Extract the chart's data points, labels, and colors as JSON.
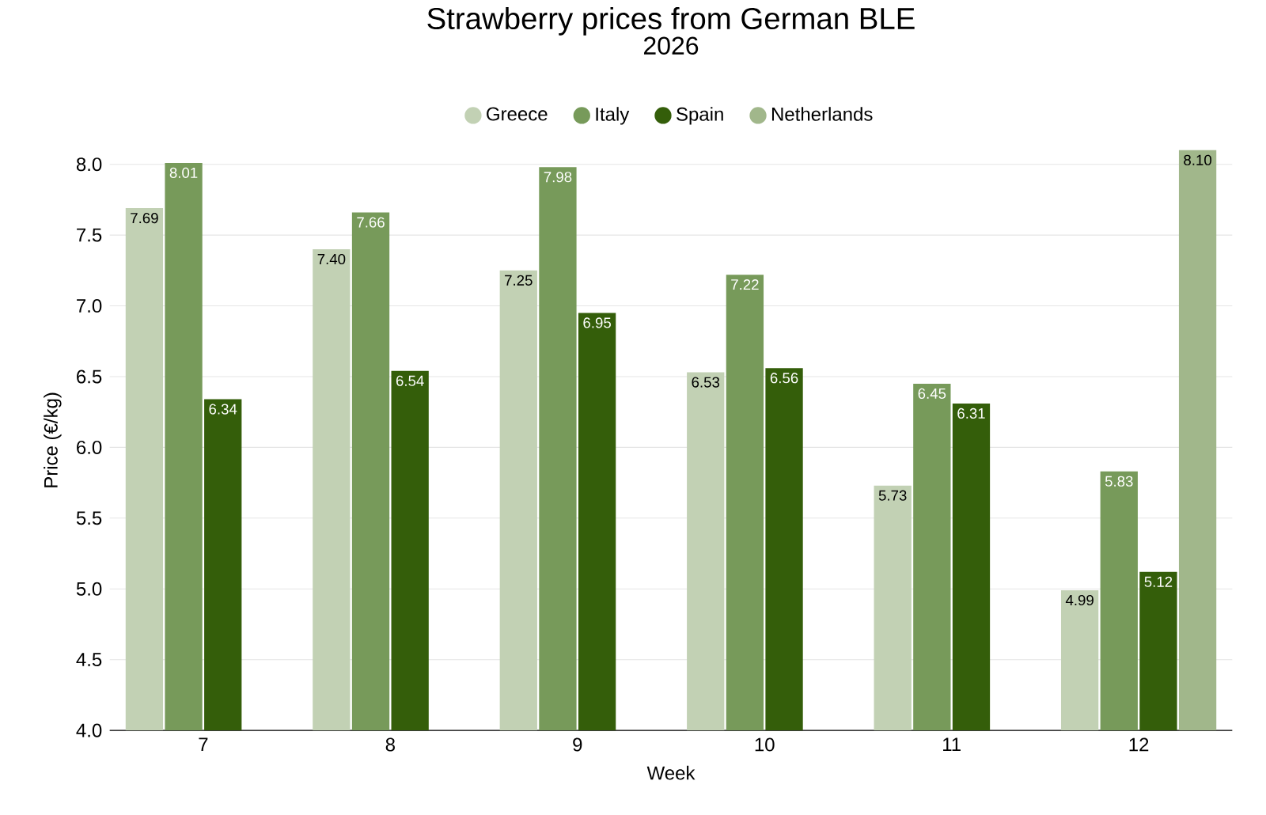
{
  "chart_data": {
    "type": "bar",
    "title": "Strawberry prices from German BLE",
    "subtitle": "2026",
    "xlabel": "Week",
    "ylabel": "Price (€/kg)",
    "categories": [
      "7",
      "8",
      "9",
      "10",
      "11",
      "12"
    ],
    "series": [
      {
        "name": "Greece",
        "color": "#c2d1b4",
        "values": [
          7.69,
          7.4,
          7.25,
          6.53,
          5.73,
          4.99
        ],
        "value_labels": [
          "7.69",
          "7.40",
          "7.25",
          "6.53",
          "5.73",
          "4.99"
        ]
      },
      {
        "name": "Italy",
        "color": "#779a5a",
        "values": [
          8.01,
          7.66,
          7.98,
          7.22,
          6.45,
          5.83
        ],
        "value_labels": [
          "8.01",
          "7.66",
          "7.98",
          "7.22",
          "6.45",
          "5.83"
        ]
      },
      {
        "name": "Spain",
        "color": "#345e0a",
        "values": [
          6.34,
          6.54,
          6.95,
          6.56,
          6.31,
          5.12
        ],
        "value_labels": [
          "6.34",
          "6.54",
          "6.95",
          "6.56",
          "6.31",
          "5.12"
        ]
      },
      {
        "name": "Netherlands",
        "color": "#a1b78b",
        "values": [
          null,
          null,
          null,
          null,
          null,
          8.1
        ],
        "value_labels": [
          null,
          null,
          null,
          null,
          null,
          "8.10"
        ]
      }
    ],
    "ylim": [
      4,
      8.1
    ],
    "yticks": [
      {
        "value": 4,
        "label": "4.0"
      },
      4.5,
      {
        "value": 5,
        "label": "5.0"
      },
      5.5,
      {
        "value": 6,
        "label": "6.0"
      },
      6.5,
      {
        "value": 7,
        "label": "7.0"
      },
      7.5,
      {
        "value": 8,
        "label": "8.0"
      }
    ],
    "grid": "y",
    "legend": "top"
  }
}
